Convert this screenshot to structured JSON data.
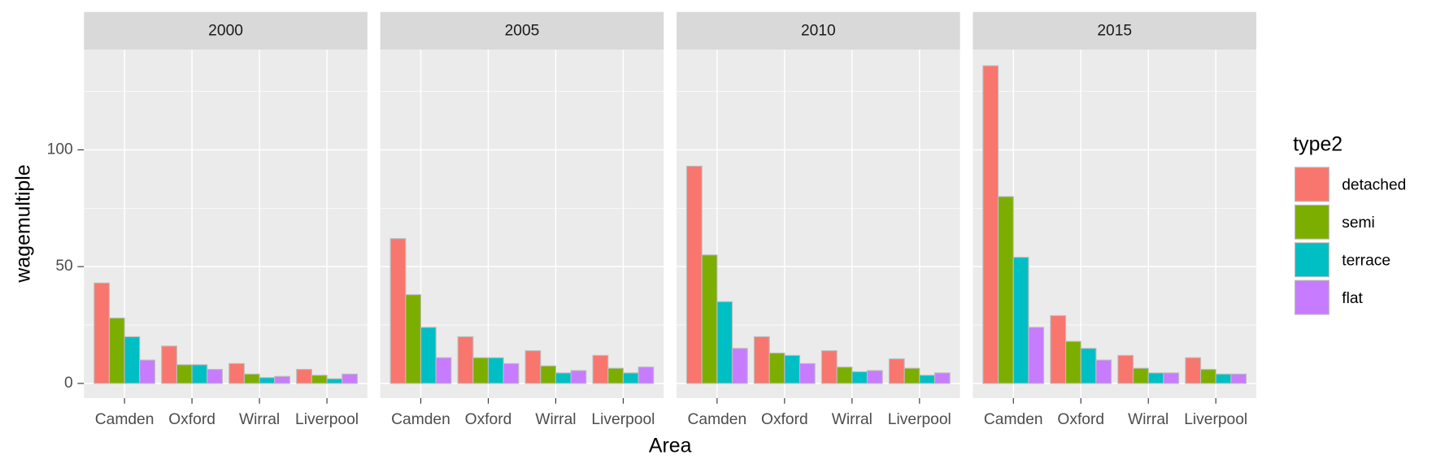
{
  "chart_data": {
    "type": "bar",
    "x_label": "Area",
    "y_label": "wagemultiple",
    "legend_title": "type2",
    "facets": [
      "2000",
      "2005",
      "2010",
      "2015"
    ],
    "categories": [
      "Camden",
      "Oxford",
      "Wirral",
      "Liverpool"
    ],
    "ylim": [
      -6.3,
      142.9
    ],
    "yticks": [
      0,
      50,
      100
    ],
    "y_minor_ticks": [
      25,
      75,
      125
    ],
    "grid": true,
    "series": [
      {
        "name": "detached",
        "color": "#F8766D",
        "values": [
          [
            43,
            16,
            8.5,
            6
          ],
          [
            62,
            20,
            14,
            12
          ],
          [
            93,
            20,
            14,
            10.5
          ],
          [
            136,
            29,
            12,
            11
          ]
        ]
      },
      {
        "name": "semi",
        "color": "#7CAE00",
        "values": [
          [
            28,
            8,
            4,
            3.5
          ],
          [
            38,
            11,
            7.5,
            6.5
          ],
          [
            55,
            13,
            7,
            6.5
          ],
          [
            80,
            18,
            6.5,
            6
          ]
        ]
      },
      {
        "name": "terrace",
        "color": "#00BFC4",
        "values": [
          [
            20,
            8,
            2.5,
            2
          ],
          [
            24,
            11,
            4.5,
            4.5
          ],
          [
            35,
            12,
            5,
            3.5
          ],
          [
            54,
            15,
            4.5,
            4
          ]
        ]
      },
      {
        "name": "flat",
        "color": "#C77CFF",
        "values": [
          [
            10,
            6,
            3,
            4
          ],
          [
            11,
            8.5,
            5.5,
            7
          ],
          [
            15,
            8.5,
            5.5,
            4.5
          ],
          [
            24,
            10,
            4.5,
            4
          ]
        ]
      }
    ]
  }
}
